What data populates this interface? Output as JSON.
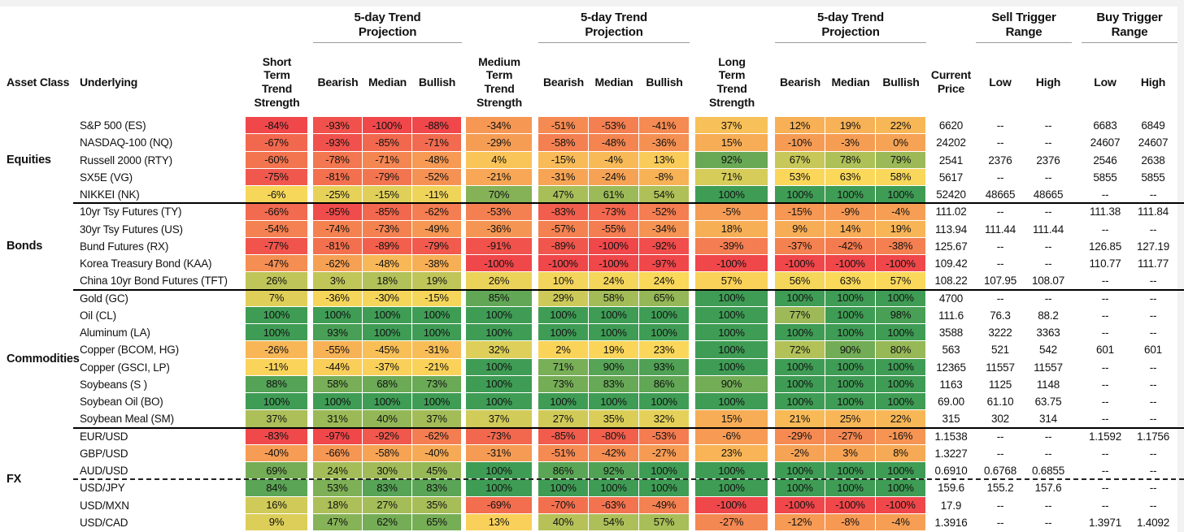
{
  "header": {
    "asset_class": "Asset Class",
    "underlying": "Underlying",
    "short_term": "Short Term Trend Strength",
    "medium_term": "Medium Term Trend Strength",
    "long_term": "Long Term Trend Strength",
    "projection_title": "5-day Trend Projection",
    "bearish": "Bearish",
    "median": "Median",
    "bullish": "Bullish",
    "current_price": "Current Price",
    "sell_trigger": "Sell Trigger Range",
    "buy_trigger": "Buy Trigger Range",
    "low": "Low",
    "high": "High",
    "empty_value": "--"
  },
  "chart_data": {
    "type": "heatmap",
    "value_format": "percent",
    "heat_columns": [
      "short-term-strength",
      "bearish-5d-short",
      "median-5d-short",
      "bullish-5d-short",
      "medium-term-strength",
      "bearish-5d-medium",
      "median-5d-medium",
      "bullish-5d-medium",
      "long-term-strength",
      "bearish-5d-long",
      "median-5d-long",
      "bullish-5d-long"
    ],
    "color_scale": {
      "min_color": "#F0474B",
      "mid_color": "#FAD85A",
      "max_color": "#3F9C55",
      "midpoint_rule": "per-column median"
    },
    "groups": [
      {
        "name": "Equities",
        "rows": [
          {
            "underlying": "S&P 500 (ES)",
            "heat": [
              -84,
              -93,
              -100,
              -88,
              -34,
              -51,
              -53,
              -41,
              37,
              12,
              19,
              22
            ],
            "price": "6620",
            "sell": [
              "--",
              "--"
            ],
            "buy": [
              "6683",
              "6849"
            ]
          },
          {
            "underlying": "NASDAQ-100 (NQ)",
            "heat": [
              -67,
              -93,
              -85,
              -71,
              -29,
              -58,
              -48,
              -36,
              15,
              -10,
              -3,
              0
            ],
            "price": "24202",
            "sell": [
              "--",
              "--"
            ],
            "buy": [
              "24607",
              "24607"
            ]
          },
          {
            "underlying": "Russell 2000 (RTY)",
            "heat": [
              -60,
              -78,
              -71,
              -48,
              4,
              -15,
              -4,
              13,
              92,
              67,
              78,
              79
            ],
            "price": "2541",
            "sell": [
              "2376",
              "2376"
            ],
            "buy": [
              "2546",
              "2638"
            ]
          },
          {
            "underlying": "SX5E (VG)",
            "heat": [
              -75,
              -81,
              -79,
              -52,
              -21,
              -31,
              -24,
              -8,
              71,
              53,
              63,
              58
            ],
            "price": "5617",
            "sell": [
              "--",
              "--"
            ],
            "buy": [
              "5855",
              "5855"
            ]
          },
          {
            "underlying": "NIKKEI (NK)",
            "heat": [
              -6,
              -25,
              -15,
              -11,
              70,
              47,
              61,
              54,
              100,
              100,
              100,
              100
            ],
            "price": "52420",
            "sell": [
              "48665",
              "48665"
            ],
            "buy": [
              "--",
              "--"
            ]
          }
        ]
      },
      {
        "name": "Bonds",
        "rows": [
          {
            "underlying": "10yr Tsy Futures (TY)",
            "heat": [
              -66,
              -95,
              -85,
              -62,
              -53,
              -83,
              -73,
              -52,
              -5,
              -15,
              -9,
              -4
            ],
            "price": "111.02",
            "sell": [
              "--",
              "--"
            ],
            "buy": [
              "111.38",
              "111.84"
            ]
          },
          {
            "underlying": "30yr Tsy Futures (US)",
            "heat": [
              -54,
              -74,
              -73,
              -49,
              -36,
              -57,
              -55,
              -34,
              18,
              9,
              14,
              19
            ],
            "price": "113.94",
            "sell": [
              "111.44",
              "111.44"
            ],
            "buy": [
              "--",
              "--"
            ]
          },
          {
            "underlying": "Bund Futures (RX)",
            "heat": [
              -77,
              -81,
              -89,
              -79,
              -91,
              -89,
              -100,
              -92,
              -39,
              -37,
              -42,
              -38
            ],
            "price": "125.67",
            "sell": [
              "--",
              "--"
            ],
            "buy": [
              "126.85",
              "127.19"
            ]
          },
          {
            "underlying": "Korea Treasury Bond (KAA)",
            "heat": [
              -47,
              -62,
              -48,
              -38,
              -100,
              -100,
              -100,
              -97,
              -100,
              -100,
              -100,
              -100
            ],
            "price": "109.42",
            "sell": [
              "--",
              "--"
            ],
            "buy": [
              "110.77",
              "111.77"
            ]
          },
          {
            "underlying": "China 10yr Bond Futures (TFT)",
            "heat": [
              26,
              3,
              18,
              19,
              26,
              10,
              24,
              24,
              57,
              56,
              63,
              57
            ],
            "price": "108.22",
            "sell": [
              "107.95",
              "108.07"
            ],
            "buy": [
              "--",
              "--"
            ]
          }
        ]
      },
      {
        "name": "Commodities",
        "rows": [
          {
            "underlying": "Gold (GC)",
            "heat": [
              7,
              -36,
              -30,
              -15,
              85,
              29,
              58,
              65,
              100,
              100,
              100,
              100
            ],
            "price": "4700",
            "sell": [
              "--",
              "--"
            ],
            "buy": [
              "--",
              "--"
            ]
          },
          {
            "underlying": "Oil (CL)",
            "heat": [
              100,
              100,
              100,
              100,
              100,
              100,
              100,
              100,
              100,
              77,
              100,
              98
            ],
            "price": "111.6",
            "sell": [
              "76.3",
              "88.2"
            ],
            "buy": [
              "--",
              "--"
            ]
          },
          {
            "underlying": "Aluminum (LA)",
            "heat": [
              100,
              93,
              100,
              100,
              100,
              100,
              100,
              100,
              100,
              100,
              100,
              100
            ],
            "price": "3588",
            "sell": [
              "3222",
              "3363"
            ],
            "buy": [
              "--",
              "--"
            ]
          },
          {
            "underlying": "Copper (BCOM, HG)",
            "heat": [
              -26,
              -55,
              -45,
              -31,
              32,
              2,
              19,
              23,
              100,
              72,
              90,
              80
            ],
            "price": "563",
            "sell": [
              "521",
              "542"
            ],
            "buy": [
              "601",
              "601"
            ]
          },
          {
            "underlying": "Copper (GSCI, LP)",
            "heat": [
              -11,
              -44,
              -37,
              -21,
              100,
              71,
              90,
              93,
              100,
              100,
              100,
              100
            ],
            "price": "12365",
            "sell": [
              "11557",
              "11557"
            ],
            "buy": [
              "--",
              "--"
            ]
          },
          {
            "underlying": "Soybeans (S )",
            "heat": [
              88,
              58,
              68,
              73,
              100,
              73,
              83,
              86,
              90,
              100,
              100,
              100
            ],
            "price": "1163",
            "sell": [
              "1125",
              "1148"
            ],
            "buy": [
              "--",
              "--"
            ]
          },
          {
            "underlying": "Soybean Oil (BO)",
            "heat": [
              100,
              100,
              100,
              100,
              100,
              100,
              100,
              100,
              100,
              100,
              100,
              100
            ],
            "price": "69.00",
            "sell": [
              "61.10",
              "63.75"
            ],
            "buy": [
              "--",
              "--"
            ]
          },
          {
            "underlying": "Soybean Meal (SM)",
            "heat": [
              37,
              31,
              40,
              37,
              37,
              27,
              35,
              32,
              15,
              21,
              25,
              22
            ],
            "price": "315",
            "sell": [
              "302",
              "314"
            ],
            "buy": [
              "--",
              "--"
            ]
          }
        ]
      },
      {
        "name": "FX",
        "rows": [
          {
            "underlying": "EUR/USD",
            "heat": [
              -83,
              -97,
              -92,
              -62,
              -73,
              -85,
              -80,
              -53,
              -6,
              -29,
              -27,
              -16
            ],
            "price": "1.1538",
            "sell": [
              "--",
              "--"
            ],
            "buy": [
              "1.1592",
              "1.1756"
            ]
          },
          {
            "underlying": "GBP/USD",
            "heat": [
              -40,
              -66,
              -58,
              -40,
              -31,
              -51,
              -42,
              -27,
              23,
              -2,
              3,
              8
            ],
            "price": "1.3227",
            "sell": [
              "--",
              "--"
            ],
            "buy": [
              "--",
              "--"
            ]
          },
          {
            "underlying": "AUD/USD",
            "heat": [
              69,
              24,
              30,
              45,
              100,
              86,
              92,
              100,
              100,
              100,
              100,
              100
            ],
            "price": "0.6910",
            "sell": [
              "0.6768",
              "0.6855"
            ],
            "buy": [
              "--",
              "--"
            ]
          },
          {
            "underlying": "USD/JPY",
            "dashed": true,
            "heat": [
              84,
              53,
              83,
              83,
              100,
              100,
              100,
              100,
              100,
              100,
              100,
              100
            ],
            "price": "159.6",
            "sell": [
              "155.2",
              "157.6"
            ],
            "buy": [
              "--",
              "--"
            ]
          },
          {
            "underlying": "USD/MXN",
            "heat": [
              16,
              18,
              27,
              35,
              -69,
              -70,
              -63,
              -49,
              -100,
              -100,
              -100,
              -100
            ],
            "price": "17.9",
            "sell": [
              "--",
              "--"
            ],
            "buy": [
              "--",
              "--"
            ]
          },
          {
            "underlying": "USD/CAD",
            "heat": [
              9,
              47,
              62,
              65,
              13,
              40,
              54,
              57,
              -27,
              -12,
              -8,
              -4
            ],
            "price": "1.3916",
            "sell": [
              "--",
              "--"
            ],
            "buy": [
              "1.3971",
              "1.4092"
            ]
          }
        ]
      }
    ]
  }
}
